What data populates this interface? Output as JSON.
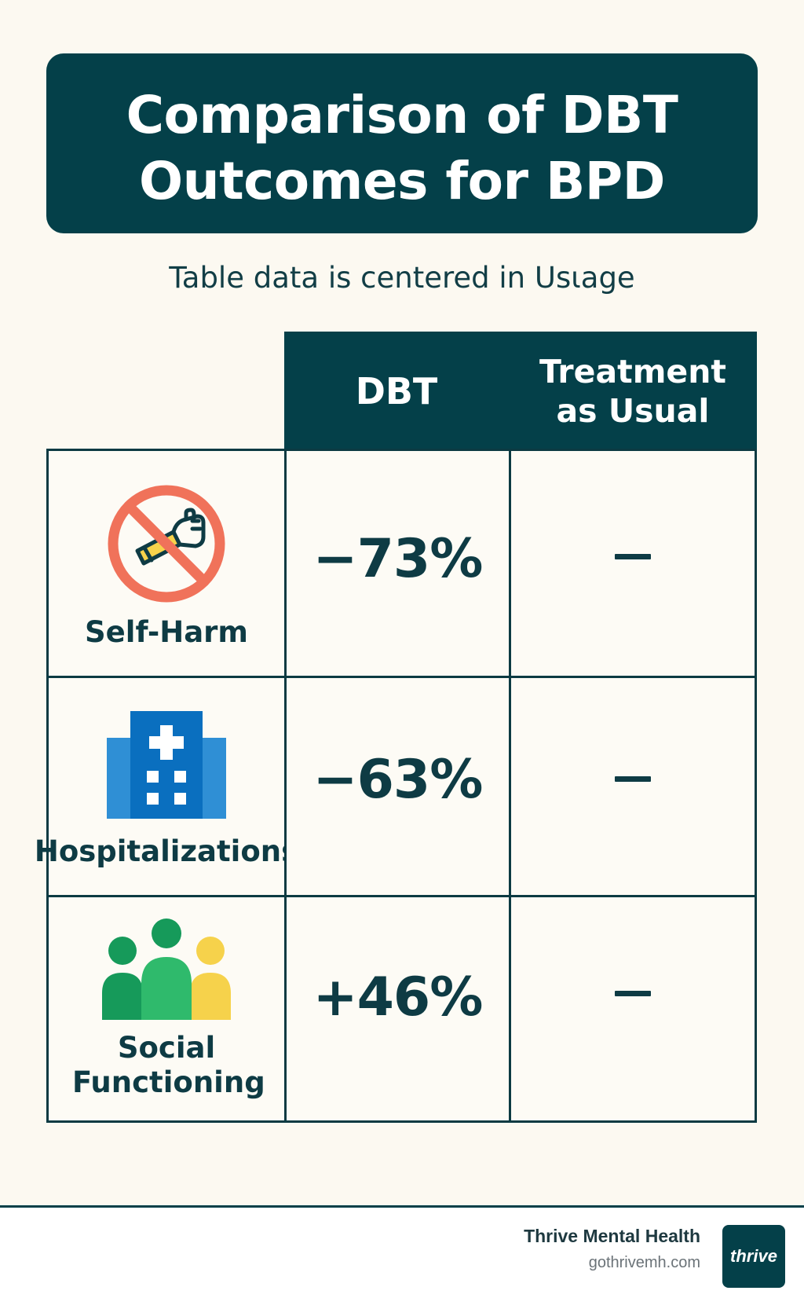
{
  "title": {
    "line1": "Comparison of DBT",
    "line2": "Outcomes for BPD"
  },
  "subtitle": "Table data is centered in Usιage",
  "table": {
    "columns": [
      "DBT",
      "Treatment as Usual"
    ],
    "rows": [
      {
        "label": "Self-Harm",
        "icon": "no-self-harm-icon",
        "dbt": "−73%",
        "tau": "—"
      },
      {
        "label": "Hospitalizations",
        "icon": "hospital-icon",
        "dbt": "−63%",
        "tau": "—"
      },
      {
        "label": "Social Functioning",
        "icon": "people-group-icon",
        "dbt": "+46%",
        "tau": "—"
      }
    ]
  },
  "footer": {
    "brand": "Thrive Mental Health",
    "url": "gothrivemh.com",
    "logo_text": "thrive"
  },
  "colors": {
    "background": "#fcf9f1",
    "header": "#044049",
    "text": "#0e3b44",
    "no_sign_red": "#f0725a",
    "hospital_blue_light": "#2f8fd5",
    "hospital_blue_dark": "#0a6fbf",
    "people_green_dark": "#169a5a",
    "people_green": "#2fba6c",
    "people_yellow": "#f6d24b"
  }
}
